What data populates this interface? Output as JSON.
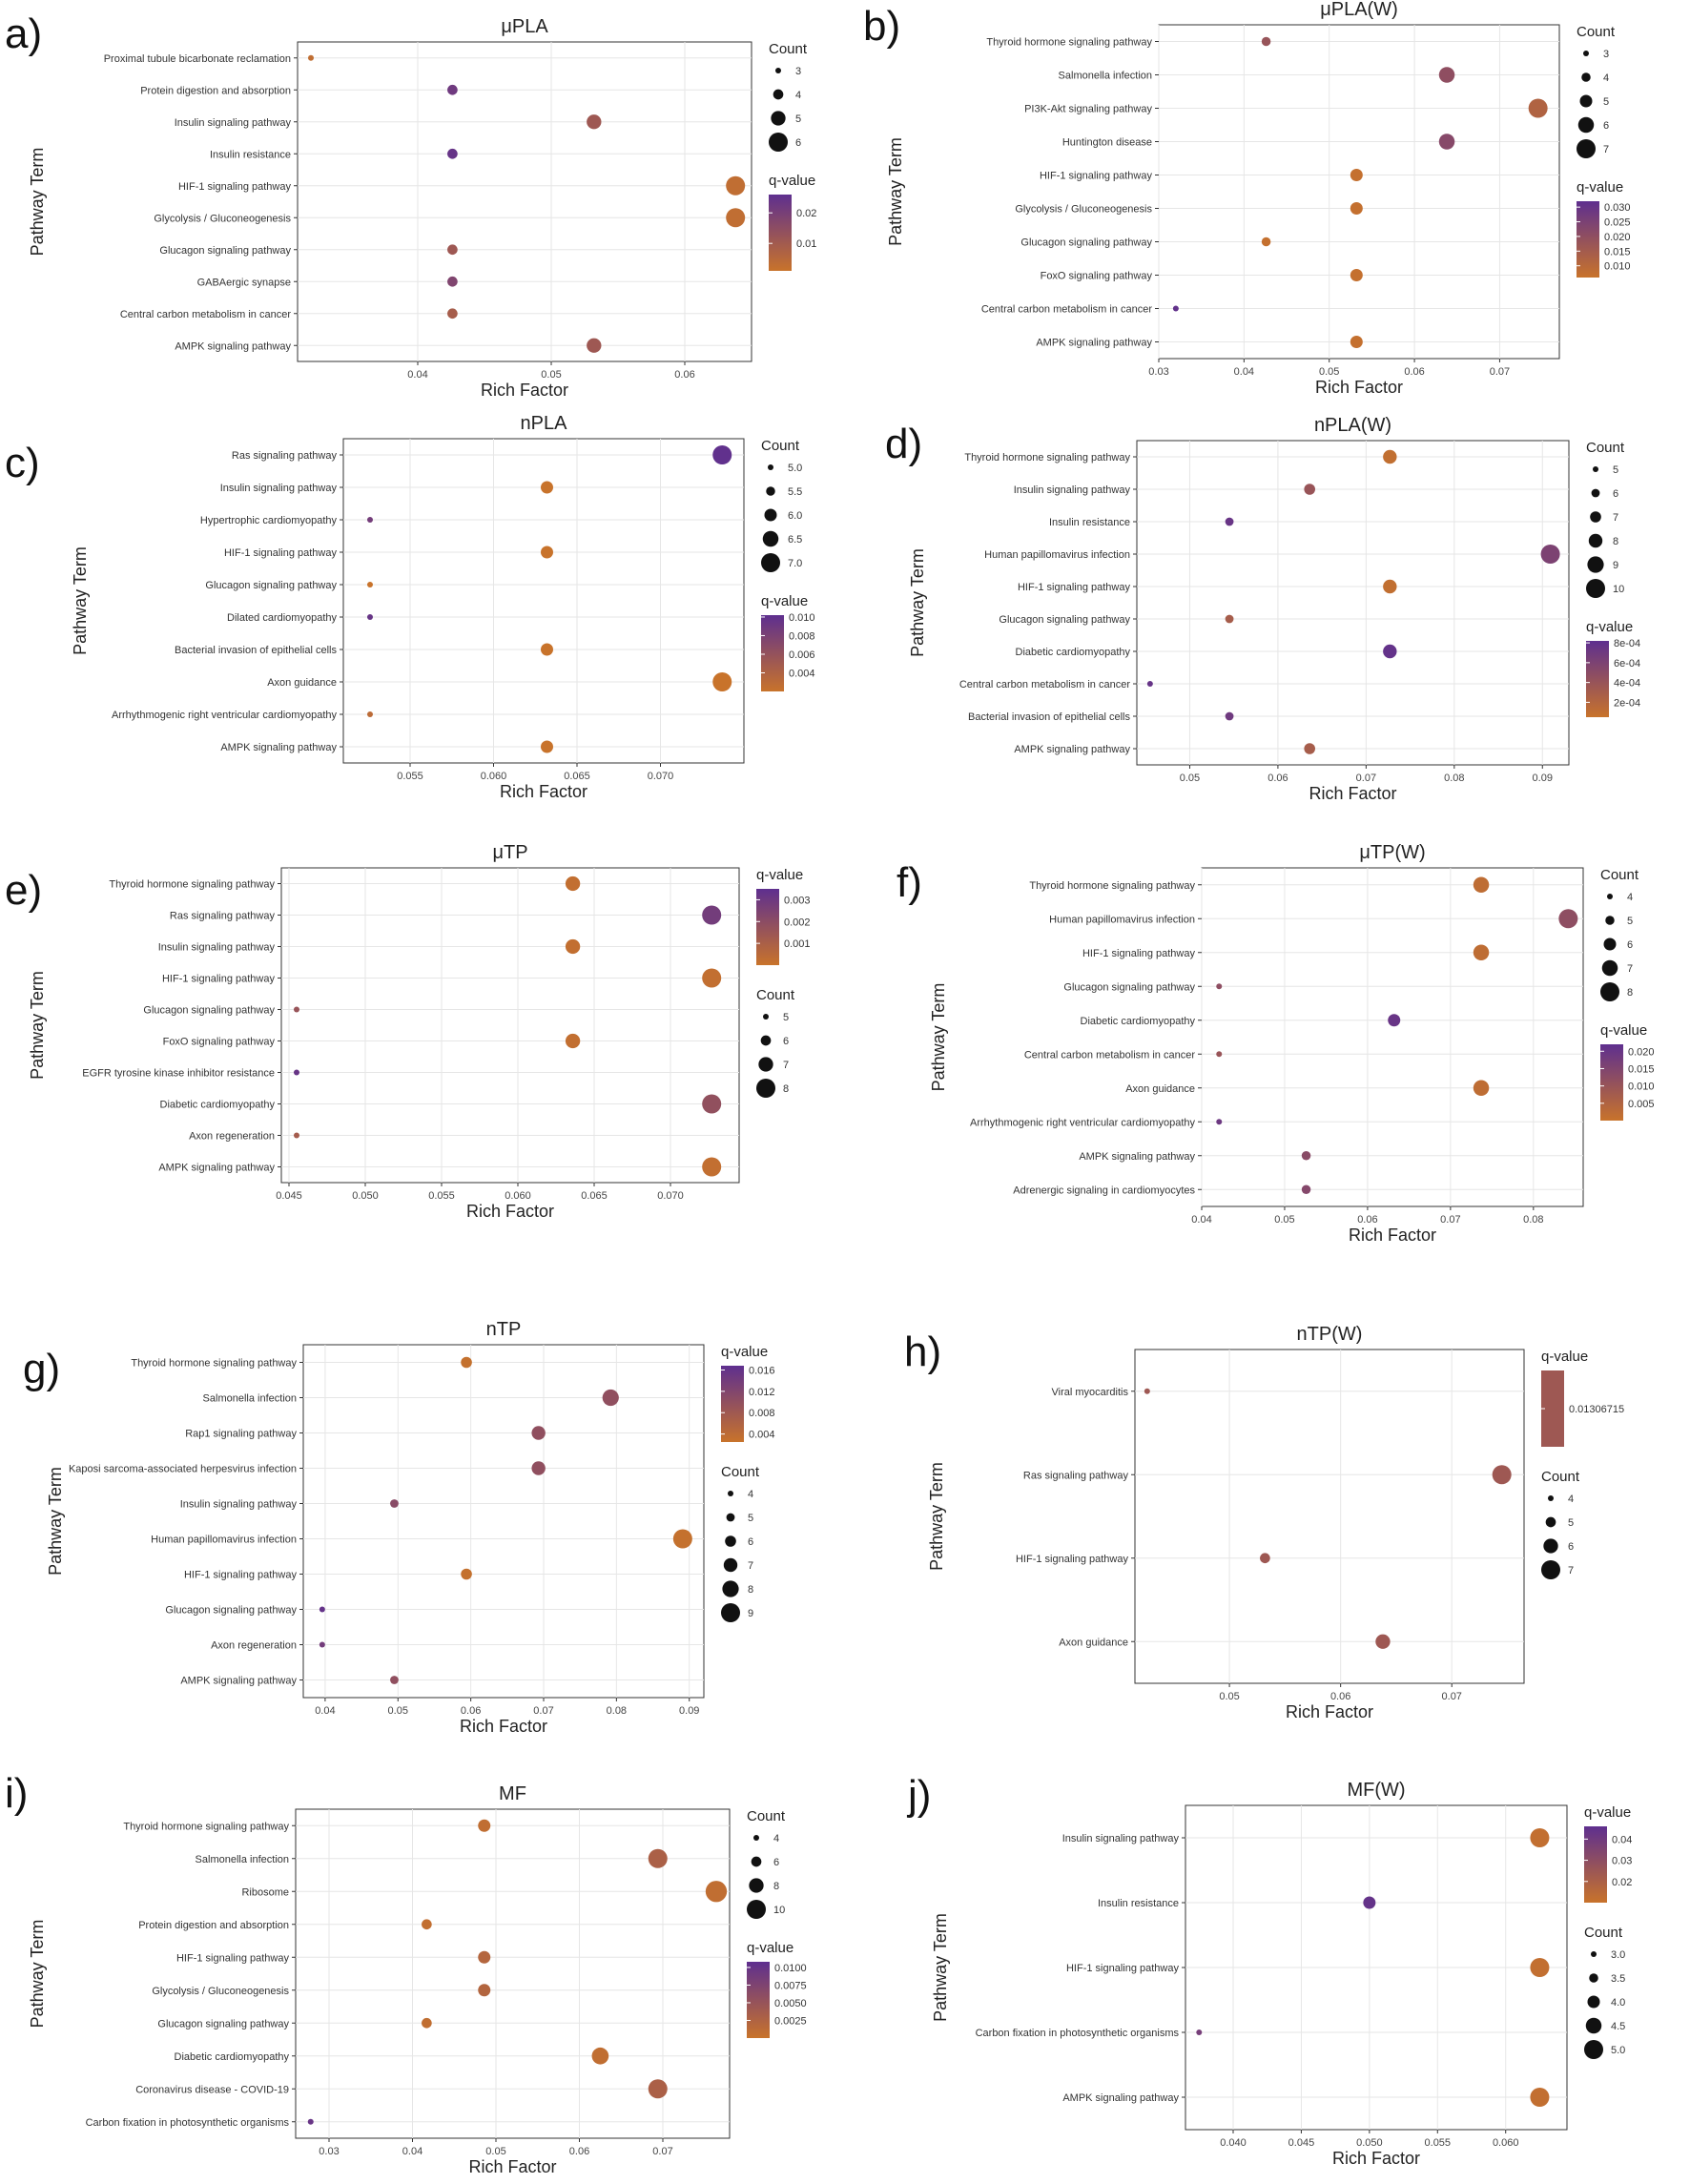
{
  "colors": {
    "low": "#c8732b",
    "high": "#5e2f8f"
  },
  "chart_data": [
    {
      "letter": "a)",
      "type": "scatter",
      "title": "μPLA",
      "xlabel": "Rich Factor",
      "ylabel": "Pathway Term",
      "xlim": [
        0.031,
        0.065
      ],
      "xticks": [
        0.04,
        0.05,
        0.06
      ],
      "xtick_labels": [
        "0.04",
        "0.05",
        "0.06"
      ],
      "categories": [
        "Proximal tubule bicarbonate reclamation",
        "Protein digestion and absorption",
        "Insulin signaling pathway",
        "Insulin resistance",
        "HIF-1 signaling pathway",
        "Glycolysis / Gluconeogenesis",
        "Glucagon signaling pathway",
        "GABAergic synapse",
        "Central carbon metabolism in cancer",
        "AMPK signaling pathway"
      ],
      "x": [
        0.032,
        0.0426,
        0.0532,
        0.0426,
        0.0638,
        0.0638,
        0.0426,
        0.0426,
        0.0426,
        0.0532
      ],
      "count": [
        3,
        4,
        5,
        4,
        6,
        6,
        4,
        4,
        4,
        5
      ],
      "q": [
        0.003,
        0.022,
        0.011,
        0.024,
        0.003,
        0.003,
        0.011,
        0.018,
        0.009,
        0.011
      ],
      "count_legend": {
        "title": "Count",
        "values": [
          3,
          4,
          5,
          6
        ],
        "labels": [
          "3",
          "4",
          "5",
          "6"
        ]
      },
      "q_legend": {
        "title": "q-value",
        "range": [
          0.001,
          0.026
        ],
        "ticks": [
          0.01,
          0.02
        ],
        "labels": [
          "0.01",
          "0.02"
        ]
      },
      "legend_order": [
        "count",
        "q"
      ]
    },
    {
      "letter": "b)",
      "type": "scatter",
      "title": "μPLA(W)",
      "xlabel": "Rich Factor",
      "ylabel": "Pathway Term",
      "xlim": [
        0.03,
        0.077
      ],
      "xticks": [
        0.03,
        0.04,
        0.05,
        0.06,
        0.07
      ],
      "xtick_labels": [
        "0.03",
        "0.04",
        "0.05",
        "0.06",
        "0.07"
      ],
      "categories": [
        "Thyroid hormone signaling pathway",
        "Salmonella infection",
        "PI3K-Akt signaling pathway",
        "Huntington disease",
        "HIF-1 signaling pathway",
        "Glycolysis / Gluconeogenesis",
        "Glucagon signaling pathway",
        "FoxO signaling pathway",
        "Central carbon metabolism in cancer",
        "AMPK signaling pathway"
      ],
      "x": [
        0.0426,
        0.0638,
        0.0745,
        0.0638,
        0.0532,
        0.0532,
        0.0426,
        0.0532,
        0.032,
        0.0532
      ],
      "count": [
        4,
        6,
        7,
        6,
        5,
        5,
        4,
        5,
        3,
        5
      ],
      "q": [
        0.018,
        0.02,
        0.012,
        0.022,
        0.007,
        0.007,
        0.007,
        0.007,
        0.031,
        0.007
      ],
      "count_legend": {
        "title": "Count",
        "values": [
          3,
          4,
          5,
          6,
          7
        ],
        "labels": [
          "3",
          "4",
          "5",
          "6",
          "7"
        ]
      },
      "q_legend": {
        "title": "q-value",
        "range": [
          0.006,
          0.032
        ],
        "ticks": [
          0.01,
          0.015,
          0.02,
          0.025,
          0.03
        ],
        "labels": [
          "0.010",
          "0.015",
          "0.020",
          "0.025",
          "0.030"
        ]
      },
      "legend_order": [
        "count",
        "q"
      ]
    },
    {
      "letter": "c)",
      "type": "scatter",
      "title": "nPLA",
      "xlabel": "Rich Factor",
      "ylabel": "Pathway Term",
      "xlim": [
        0.051,
        0.075
      ],
      "xticks": [
        0.055,
        0.06,
        0.065,
        0.07
      ],
      "xtick_labels": [
        "0.055",
        "0.060",
        "0.065",
        "0.070"
      ],
      "categories": [
        "Ras signaling pathway",
        "Insulin signaling pathway",
        "Hypertrophic cardiomyopathy",
        "HIF-1 signaling pathway",
        "Glucagon signaling pathway",
        "Dilated cardiomyopathy",
        "Bacterial invasion of epithelial cells",
        "Axon guidance",
        "Arrhythmogenic right ventricular cardiomyopathy",
        "AMPK signaling pathway"
      ],
      "x": [
        0.0737,
        0.0632,
        0.0526,
        0.0632,
        0.0526,
        0.0526,
        0.0632,
        0.0737,
        0.0526,
        0.0632
      ],
      "count": [
        7,
        6,
        5,
        6,
        5,
        5,
        6,
        7,
        5,
        6
      ],
      "q": [
        0.01,
        0.002,
        0.0085,
        0.002,
        0.002,
        0.0095,
        0.002,
        0.002,
        0.003,
        0.002
      ],
      "count_legend": {
        "title": "Count",
        "values": [
          5,
          5.5,
          6,
          6.5,
          7
        ],
        "labels": [
          "5.0",
          "5.5",
          "6.0",
          "6.5",
          "7.0"
        ]
      },
      "q_legend": {
        "title": "q-value",
        "range": [
          0.002,
          0.0102
        ],
        "ticks": [
          0.004,
          0.006,
          0.008,
          0.01
        ],
        "labels": [
          "0.004",
          "0.006",
          "0.008",
          "0.010"
        ]
      },
      "legend_order": [
        "count",
        "q"
      ]
    },
    {
      "letter": "d)",
      "type": "scatter",
      "title": "nPLA(W)",
      "xlabel": "Rich Factor",
      "ylabel": "Pathway Term",
      "xlim": [
        0.044,
        0.093
      ],
      "xticks": [
        0.05,
        0.06,
        0.07,
        0.08,
        0.09
      ],
      "xtick_labels": [
        "0.05",
        "0.06",
        "0.07",
        "0.08",
        "0.09"
      ],
      "categories": [
        "Thyroid hormone signaling pathway",
        "Insulin signaling pathway",
        "Insulin resistance",
        "Human papillomavirus infection",
        "HIF-1 signaling pathway",
        "Glucagon signaling pathway",
        "Diabetic cardiomyopathy",
        "Central carbon metabolism in cancer",
        "Bacterial invasion of epithelial cells",
        "AMPK signaling pathway"
      ],
      "x": [
        0.0727,
        0.0636,
        0.0545,
        0.0909,
        0.0727,
        0.0545,
        0.0727,
        0.0455,
        0.0545,
        0.0636
      ],
      "count": [
        8,
        7,
        6,
        10,
        8,
        6,
        8,
        5,
        6,
        7
      ],
      "q": [
        0.0001,
        0.0004,
        0.00075,
        0.0006,
        0.0001,
        0.0003,
        0.00078,
        0.00076,
        0.0007,
        0.0003
      ],
      "count_legend": {
        "title": "Count",
        "values": [
          5,
          6,
          7,
          8,
          9,
          10
        ],
        "labels": [
          "5",
          "6",
          "7",
          "8",
          "9",
          "10"
        ]
      },
      "q_legend": {
        "title": "q-value",
        "range": [
          5e-05,
          0.00082
        ],
        "ticks": [
          0.0002,
          0.0004,
          0.0006,
          0.0008
        ],
        "labels": [
          "2e-04",
          "4e-04",
          "6e-04",
          "8e-04"
        ]
      },
      "legend_order": [
        "count",
        "q"
      ]
    },
    {
      "letter": "e)",
      "type": "scatter",
      "title": "μTP",
      "xlabel": "Rich Factor",
      "ylabel": "Pathway Term",
      "xlim": [
        0.0445,
        0.0745
      ],
      "xticks": [
        0.045,
        0.05,
        0.055,
        0.06,
        0.065,
        0.07
      ],
      "xtick_labels": [
        "0.045",
        "0.050",
        "0.055",
        "0.060",
        "0.065",
        "0.070"
      ],
      "categories": [
        "Thyroid hormone signaling pathway",
        "Ras signaling pathway",
        "Insulin signaling pathway",
        "HIF-1 signaling pathway",
        "Glucagon signaling pathway",
        "FoxO signaling pathway",
        "EGFR tyrosine kinase inhibitor resistance",
        "Diabetic cardiomyopathy",
        "Axon regeneration",
        "AMPK signaling pathway"
      ],
      "x": [
        0.0636,
        0.0727,
        0.0636,
        0.0727,
        0.0455,
        0.0636,
        0.0455,
        0.0727,
        0.0455,
        0.0727
      ],
      "count": [
        7,
        8,
        7,
        8,
        5,
        7,
        5,
        8,
        5,
        8
      ],
      "q": [
        0.0002,
        0.0028,
        0.0002,
        0.0002,
        0.0016,
        0.0002,
        0.0032,
        0.0018,
        0.0012,
        0.0002
      ],
      "count_legend": {
        "title": "Count",
        "values": [
          5,
          6,
          7,
          8
        ],
        "labels": [
          "5",
          "6",
          "7",
          "8"
        ]
      },
      "q_legend": {
        "title": "q-value",
        "range": [
          0.0,
          0.0035
        ],
        "ticks": [
          0.001,
          0.002,
          0.003
        ],
        "labels": [
          "0.001",
          "0.002",
          "0.003"
        ]
      },
      "legend_order": [
        "q",
        "count"
      ]
    },
    {
      "letter": "f)",
      "type": "scatter",
      "title": "μTP(W)",
      "xlabel": "Rich Factor",
      "ylabel": "Pathway Term",
      "xlim": [
        0.04,
        0.086
      ],
      "xticks": [
        0.04,
        0.05,
        0.06,
        0.07,
        0.08
      ],
      "xtick_labels": [
        "0.04",
        "0.05",
        "0.06",
        "0.07",
        "0.08"
      ],
      "categories": [
        "Thyroid hormone signaling pathway",
        "Human papillomavirus infection",
        "HIF-1 signaling pathway",
        "Glucagon signaling pathway",
        "Diabetic cardiomyopathy",
        "Central carbon metabolism in cancer",
        "Axon guidance",
        "Arrhythmogenic right ventricular cardiomyopathy",
        "AMPK signaling pathway",
        "Adrenergic signaling in cardiomyocytes"
      ],
      "x": [
        0.0737,
        0.0842,
        0.0737,
        0.0421,
        0.0632,
        0.0421,
        0.0737,
        0.0421,
        0.0526,
        0.0526
      ],
      "count": [
        7,
        8,
        7,
        4,
        6,
        4,
        7,
        4,
        5,
        5
      ],
      "q": [
        0.002,
        0.012,
        0.002,
        0.012,
        0.02,
        0.01,
        0.002,
        0.019,
        0.013,
        0.014
      ],
      "count_legend": {
        "title": "Count",
        "values": [
          4,
          5,
          6,
          7,
          8
        ],
        "labels": [
          "4",
          "5",
          "6",
          "7",
          "8"
        ]
      },
      "q_legend": {
        "title": "q-value",
        "range": [
          0.0,
          0.022
        ],
        "ticks": [
          0.005,
          0.01,
          0.015,
          0.02
        ],
        "labels": [
          "0.005",
          "0.010",
          "0.015",
          "0.020"
        ]
      },
      "legend_order": [
        "count",
        "q"
      ]
    },
    {
      "letter": "g)",
      "type": "scatter",
      "title": "nTP",
      "xlabel": "Rich Factor",
      "ylabel": "Pathway Term",
      "xlim": [
        0.037,
        0.092
      ],
      "xticks": [
        0.04,
        0.05,
        0.06,
        0.07,
        0.08,
        0.09
      ],
      "xtick_labels": [
        "0.04",
        "0.05",
        "0.06",
        "0.07",
        "0.08",
        "0.09"
      ],
      "categories": [
        "Thyroid hormone signaling pathway",
        "Salmonella infection",
        "Rap1 signaling pathway",
        "Kaposi sarcoma-associated herpesvirus infection",
        "Insulin signaling pathway",
        "Human papillomavirus infection",
        "HIF-1 signaling pathway",
        "Glucagon signaling pathway",
        "Axon regeneration",
        "AMPK signaling pathway"
      ],
      "x": [
        0.0594,
        0.0792,
        0.0693,
        0.0693,
        0.0495,
        0.0891,
        0.0594,
        0.0396,
        0.0396,
        0.0495
      ],
      "count": [
        6,
        8,
        7,
        7,
        5,
        9,
        6,
        4,
        4,
        5
      ],
      "q": [
        0.003,
        0.01,
        0.01,
        0.01,
        0.011,
        0.003,
        0.003,
        0.016,
        0.014,
        0.01
      ],
      "count_legend": {
        "title": "Count",
        "values": [
          4,
          5,
          6,
          7,
          8,
          9
        ],
        "labels": [
          "4",
          "5",
          "6",
          "7",
          "8",
          "9"
        ]
      },
      "q_legend": {
        "title": "q-value",
        "range": [
          0.0025,
          0.0168
        ],
        "ticks": [
          0.004,
          0.008,
          0.012,
          0.016
        ],
        "labels": [
          "0.004",
          "0.008",
          "0.012",
          "0.016"
        ]
      },
      "legend_order": [
        "q",
        "count"
      ]
    },
    {
      "letter": "h)",
      "type": "scatter",
      "title": "nTP(W)",
      "xlabel": "Rich Factor",
      "ylabel": "Pathway Term",
      "xlim": [
        0.0415,
        0.0765
      ],
      "xticks": [
        0.05,
        0.06,
        0.07
      ],
      "xtick_labels": [
        "0.05",
        "0.06",
        "0.07"
      ],
      "categories": [
        "Viral myocarditis",
        "Ras signaling pathway",
        "HIF-1 signaling pathway",
        "Axon guidance"
      ],
      "x": [
        0.0426,
        0.0745,
        0.0532,
        0.0638
      ],
      "count": [
        4,
        7,
        5,
        6
      ],
      "q": [
        0.01306715,
        0.01306715,
        0.01306715,
        0.01306715
      ],
      "count_legend": {
        "title": "Count",
        "values": [
          4,
          5,
          6,
          7
        ],
        "labels": [
          "4",
          "5",
          "6",
          "7"
        ]
      },
      "q_legend": {
        "title": "q-value",
        "single": true,
        "range": [
          0.013,
          0.0132
        ],
        "ticks": [
          0.01306715
        ],
        "labels": [
          "0.01306715"
        ]
      },
      "legend_order": [
        "q",
        "count"
      ]
    },
    {
      "letter": "i)",
      "type": "scatter",
      "title": "MF",
      "xlabel": "Rich Factor",
      "ylabel": "Pathway Term",
      "xlim": [
        0.026,
        0.078
      ],
      "xticks": [
        0.03,
        0.04,
        0.05,
        0.06,
        0.07
      ],
      "xtick_labels": [
        "0.03",
        "0.04",
        "0.05",
        "0.06",
        "0.07"
      ],
      "categories": [
        "Thyroid hormone signaling pathway",
        "Salmonella infection",
        "Ribosome",
        "Protein digestion and absorption",
        "HIF-1 signaling pathway",
        "Glycolysis / Gluconeogenesis",
        "Glucagon signaling pathway",
        "Diabetic cardiomyopathy",
        "Coronavirus disease - COVID-19",
        "Carbon fixation in photosynthetic organisms"
      ],
      "x": [
        0.0486,
        0.0694,
        0.0764,
        0.0417,
        0.0486,
        0.0486,
        0.0417,
        0.0625,
        0.0694,
        0.0278
      ],
      "count": [
        7,
        10,
        11,
        6,
        7,
        7,
        6,
        9,
        10,
        4
      ],
      "q": [
        0.0008,
        0.003,
        0.0008,
        0.0006,
        0.002,
        0.0022,
        0.0008,
        0.0008,
        0.003,
        0.0098
      ],
      "count_legend": {
        "title": "Count",
        "values": [
          4,
          6,
          8,
          10
        ],
        "labels": [
          "4",
          "6",
          "8",
          "10"
        ]
      },
      "q_legend": {
        "title": "q-value",
        "range": [
          0.0,
          0.0108
        ],
        "ticks": [
          0.0025,
          0.005,
          0.0075,
          0.01
        ],
        "labels": [
          "0.0025",
          "0.0050",
          "0.0075",
          "0.0100"
        ]
      },
      "legend_order": [
        "count",
        "q"
      ]
    },
    {
      "letter": "j)",
      "type": "scatter",
      "title": "MF(W)",
      "xlabel": "Rich Factor",
      "ylabel": "Pathway Term",
      "xlim": [
        0.0365,
        0.0645
      ],
      "xticks": [
        0.04,
        0.045,
        0.05,
        0.055,
        0.06
      ],
      "xtick_labels": [
        "0.040",
        "0.045",
        "0.050",
        "0.055",
        "0.060"
      ],
      "categories": [
        "Insulin signaling pathway",
        "Insulin resistance",
        "HIF-1 signaling pathway",
        "Carbon fixation in photosynthetic organisms",
        "AMPK signaling pathway"
      ],
      "x": [
        0.0625,
        0.05,
        0.0625,
        0.0375,
        0.0625
      ],
      "count": [
        5,
        4,
        5,
        3,
        5
      ],
      "q": [
        0.012,
        0.044,
        0.012,
        0.038,
        0.012
      ],
      "count_legend": {
        "title": "Count",
        "values": [
          3,
          3.5,
          4,
          4.5,
          5
        ],
        "labels": [
          "3.0",
          "3.5",
          "4.0",
          "4.5",
          "5.0"
        ]
      },
      "q_legend": {
        "title": "q-value",
        "range": [
          0.01,
          0.046
        ],
        "ticks": [
          0.02,
          0.03,
          0.04
        ],
        "labels": [
          "0.02",
          "0.03",
          "0.04"
        ]
      },
      "legend_order": [
        "q",
        "count"
      ]
    }
  ]
}
